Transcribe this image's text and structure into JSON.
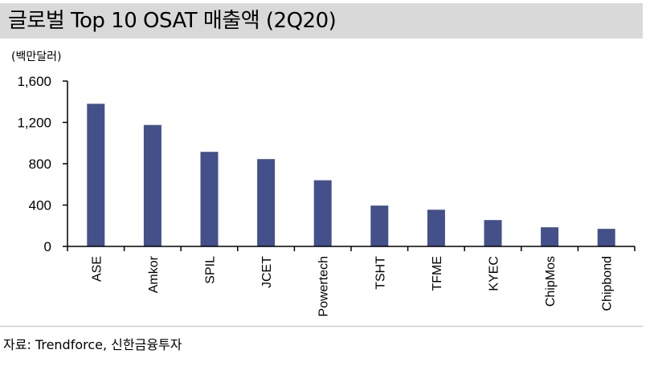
{
  "title": "글로벌 Top 10 OSAT 매출액 (2Q20)",
  "source": "자료: Trendforce, 신한금융투자",
  "colors": {
    "bar": "#44508a",
    "title_bg": "#d9d9d9",
    "axis": "#000000"
  },
  "chart_data": {
    "type": "bar",
    "unit_label": "(백만달러)",
    "categories": [
      "ASE",
      "Amkor",
      "SPIL",
      "JCET",
      "Powertech",
      "TSHT",
      "TFME",
      "KYEC",
      "ChipMos",
      "Chipbond"
    ],
    "values": [
      1380,
      1175,
      915,
      845,
      640,
      395,
      355,
      255,
      185,
      170
    ],
    "y_ticks": [
      "1,600",
      "1,200",
      "800",
      "400",
      "0"
    ],
    "y_tick_values": [
      1600,
      1200,
      800,
      400,
      0
    ],
    "ylim": [
      0,
      1600
    ],
    "grid": false,
    "legend": "none"
  }
}
